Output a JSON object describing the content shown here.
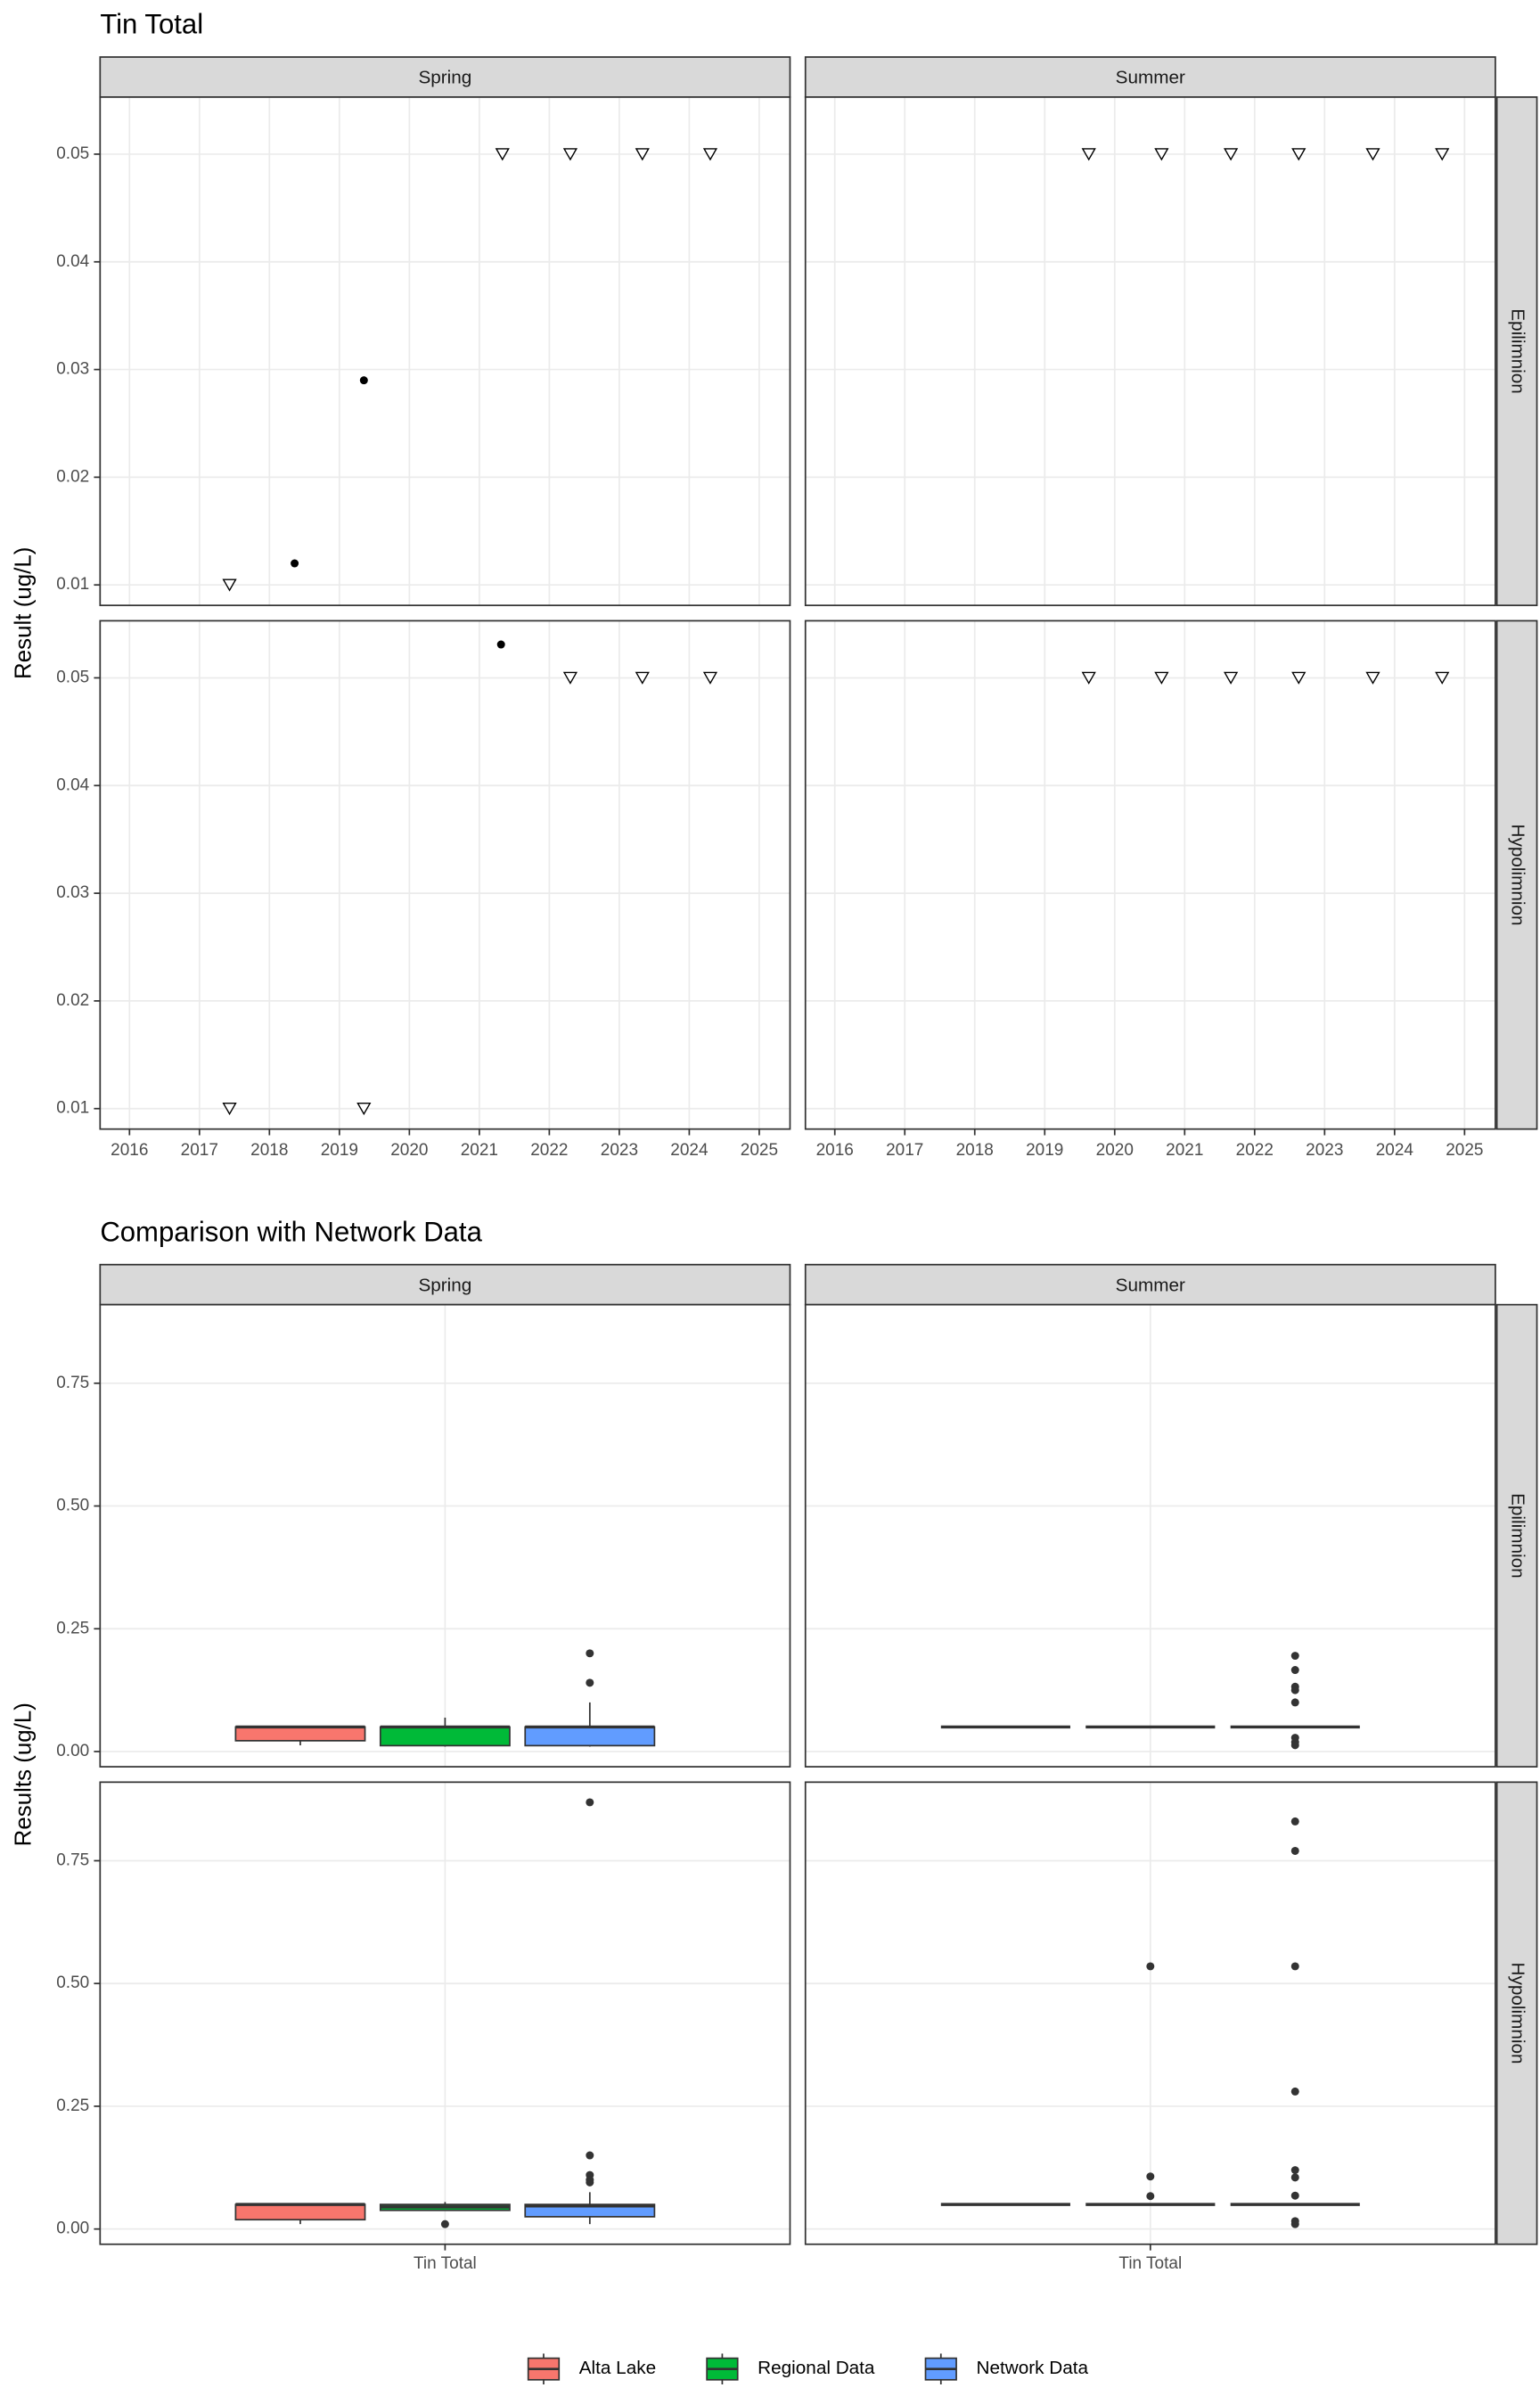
{
  "chart_data": [
    {
      "type": "scatter",
      "title": "Tin Total",
      "y_label": "Result (ug/L)",
      "columns": [
        "Spring",
        "Summer"
      ],
      "rows": [
        "Epilimnion",
        "Hypolimnion"
      ],
      "xlim": [
        2015.58,
        2025.44
      ],
      "xticks": [
        2016,
        2017,
        2018,
        2019,
        2020,
        2021,
        2022,
        2023,
        2024,
        2025
      ],
      "ylim": [
        0.0081,
        0.0553
      ],
      "yticks": [
        0.01,
        0.02,
        0.03,
        0.04,
        0.05
      ],
      "grid": true,
      "panels": [
        {
          "col": 0,
          "row": 0,
          "x": [
            2017.43,
            2018.36,
            2019.35,
            2021.33,
            2022.3,
            2023.33,
            2024.3
          ],
          "y": [
            0.01,
            0.012,
            0.029,
            0.05,
            0.05,
            0.05,
            0.05
          ],
          "shapes": [
            "triangle",
            "dot",
            "dot",
            "triangle",
            "triangle",
            "triangle",
            "triangle"
          ]
        },
        {
          "col": 1,
          "row": 0,
          "x": [
            2019.63,
            2020.67,
            2021.66,
            2022.63,
            2023.69,
            2024.68
          ],
          "y": [
            0.05,
            0.05,
            0.05,
            0.05,
            0.05,
            0.05
          ],
          "shapes": [
            "triangle",
            "triangle",
            "triangle",
            "triangle",
            "triangle",
            "triangle"
          ]
        },
        {
          "col": 0,
          "row": 1,
          "x": [
            2017.43,
            2019.35,
            2021.31,
            2022.3,
            2023.33,
            2024.3
          ],
          "y": [
            0.01,
            0.01,
            0.0531,
            0.05,
            0.05,
            0.05
          ],
          "shapes": [
            "triangle",
            "triangle",
            "dot",
            "triangle",
            "triangle",
            "triangle"
          ]
        },
        {
          "col": 1,
          "row": 1,
          "x": [
            2019.63,
            2020.67,
            2021.66,
            2022.63,
            2023.69,
            2024.68
          ],
          "y": [
            0.05,
            0.05,
            0.05,
            0.05,
            0.05,
            0.05
          ],
          "shapes": [
            "triangle",
            "triangle",
            "triangle",
            "triangle",
            "triangle",
            "triangle"
          ]
        }
      ]
    },
    {
      "type": "box",
      "title": "Comparison with Network Data",
      "y_label": "Results (ug/L)",
      "columns": [
        "Spring",
        "Summer"
      ],
      "rows": [
        "Epilimnion",
        "Hypolimnion"
      ],
      "categories": [
        "Tin Total"
      ],
      "ylim": [
        -0.031,
        0.91
      ],
      "yticks": [
        {
          "value": 0,
          "label": "0.00"
        },
        {
          "value": 0.25,
          "label": "0.25"
        },
        {
          "value": 0.5,
          "label": "0.50"
        },
        {
          "value": 0.75,
          "label": "0.75"
        }
      ],
      "grid": true,
      "series": [
        {
          "name": "Alta Lake",
          "color": "#f8766d"
        },
        {
          "name": "Regional Data",
          "color": "#00ba38"
        },
        {
          "name": "Network Data",
          "color": "#619cff"
        }
      ],
      "panels": [
        {
          "col": 0,
          "row": 0,
          "boxes": [
            {
              "whisker_low": 0.0126,
              "q1": 0.022,
              "median": 0.05,
              "q3": 0.05,
              "whisker_high": 0.05,
              "outliers": []
            },
            {
              "whisker_low": 0.01,
              "q1": 0.012,
              "median": 0.05,
              "q3": 0.05,
              "whisker_high": 0.069,
              "outliers": []
            },
            {
              "whisker_low": 0.01,
              "q1": 0.012,
              "median": 0.05,
              "q3": 0.05,
              "whisker_high": 0.1,
              "outliers": [
                0.14,
                0.2
              ]
            }
          ]
        },
        {
          "col": 1,
          "row": 0,
          "boxes": [
            {
              "whisker_low": 0.05,
              "q1": 0.05,
              "median": 0.05,
              "q3": 0.05,
              "whisker_high": 0.05,
              "outliers": []
            },
            {
              "whisker_low": 0.05,
              "q1": 0.05,
              "median": 0.05,
              "q3": 0.05,
              "whisker_high": 0.05,
              "outliers": []
            },
            {
              "whisker_low": 0.05,
              "q1": 0.05,
              "median": 0.05,
              "q3": 0.05,
              "whisker_high": 0.05,
              "outliers": [
                0.195,
                0.166,
                0.132,
                0.125,
                0.1,
                0.028,
                0.019,
                0.013
              ]
            }
          ]
        },
        {
          "col": 0,
          "row": 1,
          "boxes": [
            {
              "whisker_low": 0.01,
              "q1": 0.019,
              "median": 0.05,
              "q3": 0.05,
              "whisker_high": 0.05,
              "outliers": []
            },
            {
              "whisker_low": 0.038,
              "q1": 0.038,
              "median": 0.045,
              "q3": 0.05,
              "whisker_high": 0.055,
              "outliers": [
                0.01
              ]
            },
            {
              "whisker_low": 0.01,
              "q1": 0.025,
              "median": 0.047,
              "q3": 0.05,
              "whisker_high": 0.075,
              "outliers": [
                0.869,
                0.15,
                0.11,
                0.1,
                0.095
              ]
            }
          ]
        },
        {
          "col": 1,
          "row": 1,
          "boxes": [
            {
              "whisker_low": 0.05,
              "q1": 0.05,
              "median": 0.05,
              "q3": 0.05,
              "whisker_high": 0.05,
              "outliers": []
            },
            {
              "whisker_low": 0.05,
              "q1": 0.05,
              "median": 0.05,
              "q3": 0.05,
              "whisker_high": 0.05,
              "outliers": [
                0.535,
                0.107,
                0.067
              ]
            },
            {
              "whisker_low": 0.05,
              "q1": 0.05,
              "median": 0.05,
              "q3": 0.05,
              "whisker_high": 0.05,
              "outliers": [
                0.83,
                0.77,
                0.535,
                0.28,
                0.12,
                0.105,
                0.068,
                0.016,
                0.01
              ]
            }
          ]
        }
      ]
    }
  ]
}
